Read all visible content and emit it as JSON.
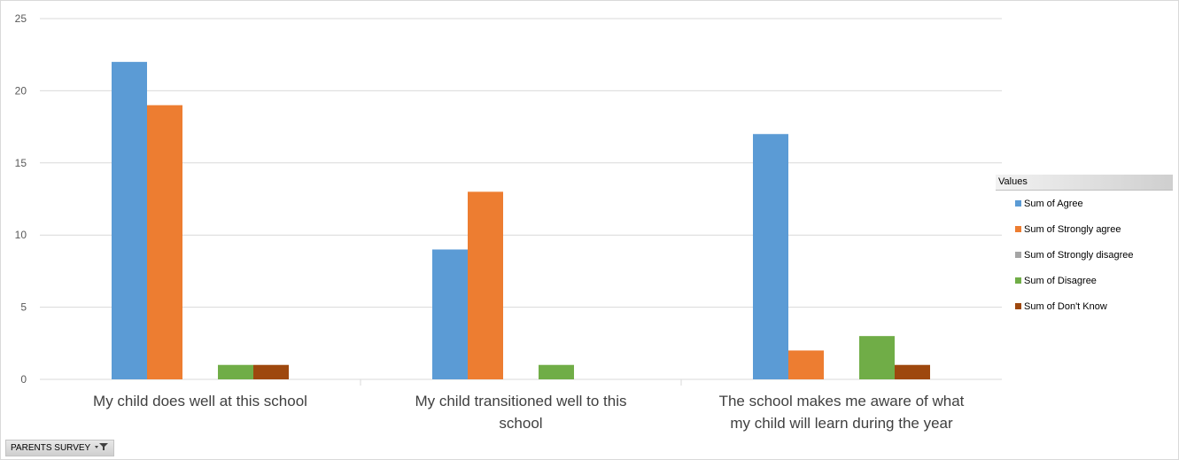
{
  "chart_data": {
    "type": "bar",
    "title": "",
    "xlabel": "",
    "ylabel": "",
    "ylim": [
      0,
      25
    ],
    "yticks": [
      0,
      5,
      10,
      15,
      20,
      25
    ],
    "grid": true,
    "legend_position": "right",
    "categories": [
      [
        "My child does well at this school"
      ],
      [
        "My child transitioned well to this",
        "school"
      ],
      [
        "The school makes me aware of what",
        "my child will learn during the year"
      ]
    ],
    "series": [
      {
        "name": "Sum of Agree",
        "color": "#5b9bd5",
        "values": [
          22,
          9,
          17
        ]
      },
      {
        "name": "Sum of Strongly agree",
        "color": "#ed7d31",
        "values": [
          19,
          13,
          2
        ]
      },
      {
        "name": "Sum of Strongly disagree",
        "color": "#a5a5a5",
        "values": [
          0,
          0,
          0
        ]
      },
      {
        "name": "Sum of Disagree",
        "color": "#70ad47",
        "values": [
          1,
          1,
          3
        ]
      },
      {
        "name": "Sum of Don't Know",
        "color": "#9e480e",
        "values": [
          1,
          0,
          1
        ]
      }
    ]
  },
  "legend": {
    "title": "Values"
  },
  "filter": {
    "label": "PARENTS SURVEY",
    "icon": "filter-dropdown-icon"
  }
}
